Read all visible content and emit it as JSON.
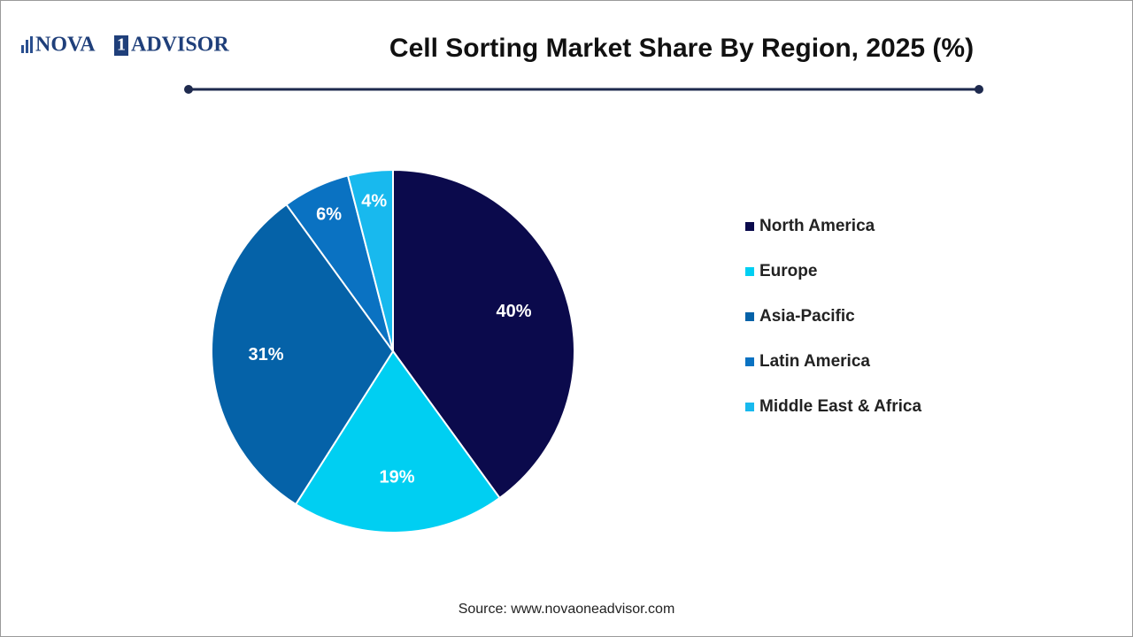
{
  "logo": {
    "left": "NOVA",
    "digit": "1",
    "right": "ADVISOR"
  },
  "chart_data": {
    "type": "pie",
    "title": "Cell Sorting Market Share By Region, 2025 (%)",
    "categories": [
      "North America",
      "Europe",
      "Asia-Pacific",
      "Latin America",
      "Middle East & Africa"
    ],
    "values": [
      40,
      19,
      31,
      6,
      4
    ],
    "value_labels": [
      "40%",
      "19%",
      "31%",
      "6%",
      "4%"
    ],
    "colors": [
      "#0b0a4c",
      "#00cff2",
      "#0562a8",
      "#0a72c2",
      "#18b9ee"
    ],
    "legend": "right",
    "source": "Source: www.novaoneadvisor.com"
  }
}
